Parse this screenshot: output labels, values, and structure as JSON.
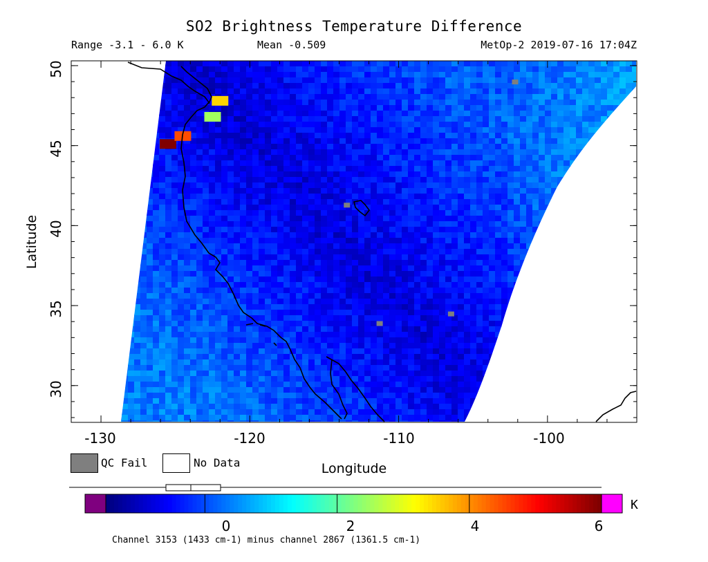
{
  "header": {
    "title": "SO2 Brightness Temperature Difference",
    "range": "Range -3.1 - 6.0 K",
    "mean": "Mean -0.509",
    "satellite_time": "MetOp-2 2019-07-16 17:04Z"
  },
  "axes": {
    "ylabel": "Latitude",
    "xlabel": "Longitude",
    "yticks": [
      "30",
      "35",
      "40",
      "45",
      "50"
    ],
    "xticks": [
      "-130",
      "-120",
      "-110",
      "-100"
    ],
    "lon_range": [
      -132,
      -94
    ],
    "lat_range": [
      27.7,
      50.3
    ]
  },
  "legend": {
    "qc_fail": "QC Fail",
    "no_data": "No Data",
    "qc_color": "#7f7f7f"
  },
  "colorbar": {
    "ticks": [
      "0",
      "2",
      "4",
      "6"
    ],
    "unit": "K",
    "under_color": "#7f007f",
    "over_color": "#ff00ff",
    "caption": "Channel 3153 (1433 cm-1) minus channel 2867 (1361.5 cm-1)"
  },
  "map_features": {
    "plumes": [
      {
        "lon": -125.5,
        "lat": 45.1,
        "value": 6.0
      },
      {
        "lon": -124.5,
        "lat": 45.6,
        "value": 4.5
      },
      {
        "lon": -122.5,
        "lat": 46.8,
        "value": 2.5
      },
      {
        "lon": -122.0,
        "lat": 47.8,
        "value": 3.5
      }
    ],
    "qc_fail_pixels": [
      {
        "lon": -113.5,
        "lat": 41.3
      },
      {
        "lon": -111.3,
        "lat": 33.9
      },
      {
        "lon": -106.5,
        "lat": 34.5
      },
      {
        "lon": -102.2,
        "lat": 49.0
      }
    ]
  }
}
